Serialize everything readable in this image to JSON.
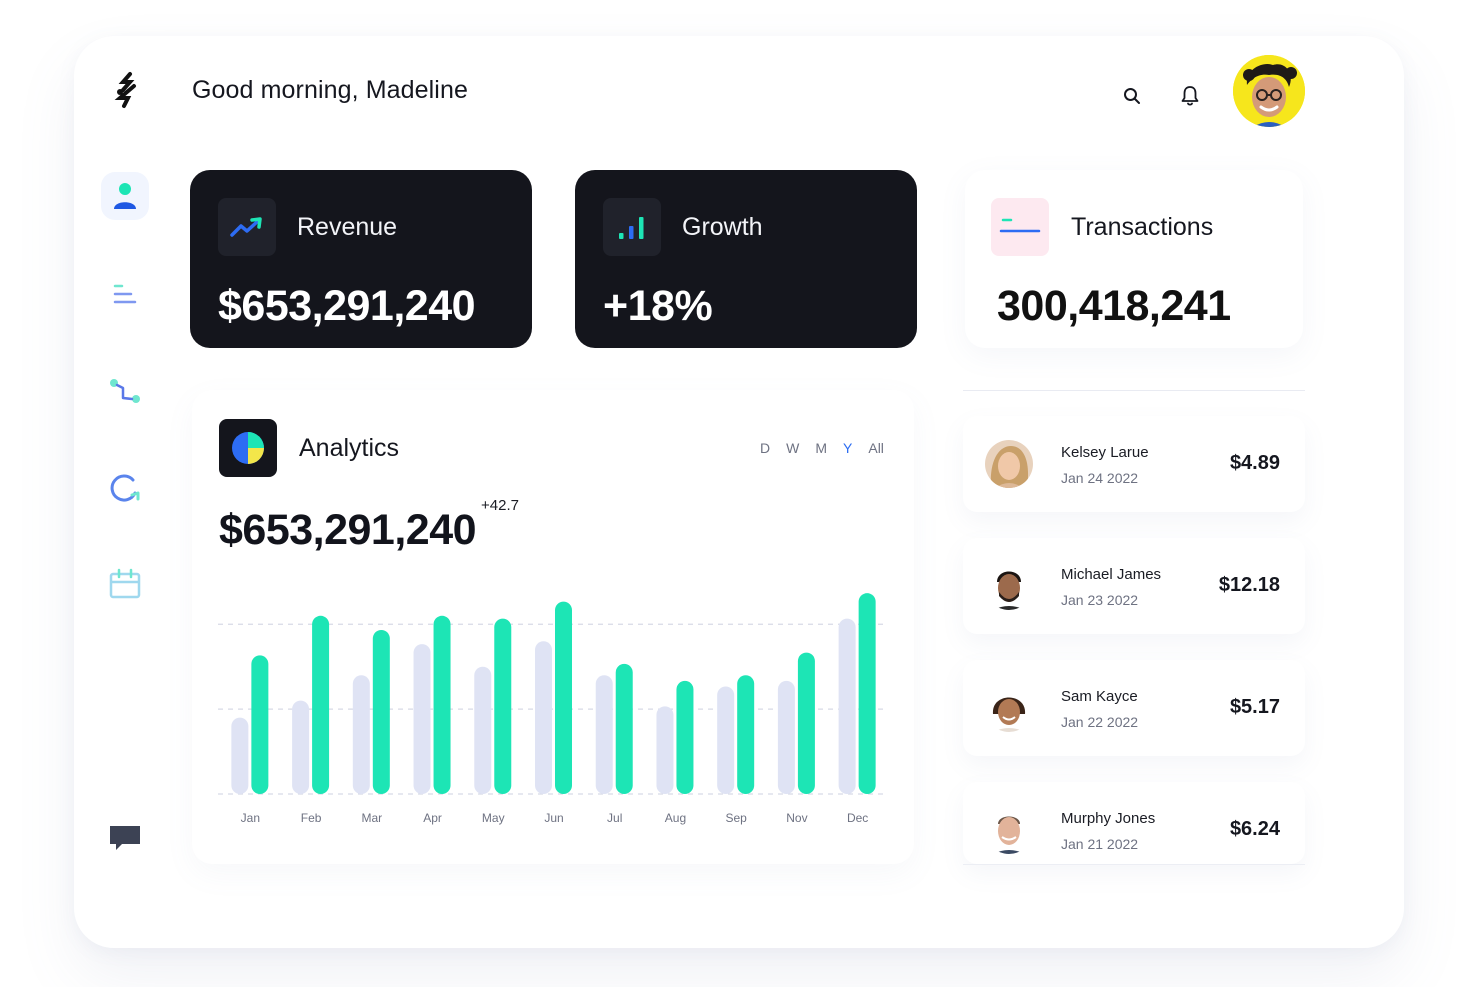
{
  "header": {
    "greeting": "Good morning, Madeline",
    "icons": [
      "search-icon",
      "bell-icon"
    ]
  },
  "sidebar": {
    "items": [
      {
        "name": "profile-icon",
        "active": true
      },
      {
        "name": "list-icon",
        "active": false
      },
      {
        "name": "workflow-icon",
        "active": false
      },
      {
        "name": "refresh-icon",
        "active": false
      },
      {
        "name": "calendar-icon",
        "active": false
      }
    ],
    "bottom_icon": "chat-icon"
  },
  "cards": {
    "revenue": {
      "label": "Revenue",
      "value": "$653,291,240",
      "icon": "trend-up-icon"
    },
    "growth": {
      "label": "Growth",
      "value": "+18%",
      "icon": "bar-chart-icon"
    },
    "transactions": {
      "label": "Transactions",
      "value": "300,418,241",
      "icon": "card-icon"
    }
  },
  "analytics": {
    "title": "Analytics",
    "icon": "pie-chart-icon",
    "periods": [
      "D",
      "W",
      "M",
      "Y",
      "All"
    ],
    "active_period": "Y",
    "value": "$653,291,240",
    "delta": "+42.7"
  },
  "transactions": [
    {
      "name": "Kelsey Larue",
      "date": "Jan 24 2022",
      "amount": "$4.89"
    },
    {
      "name": "Michael James",
      "date": "Jan 23 2022",
      "amount": "$12.18"
    },
    {
      "name": "Sam Kayce",
      "date": "Jan 22 2022",
      "amount": "$5.17"
    },
    {
      "name": "Murphy Jones",
      "date": "Jan 21 2022",
      "amount": "$6.24"
    }
  ],
  "colors": {
    "accent": "#1de5b5",
    "bar_secondary": "#dfe3f4",
    "dark_card": "#14151c",
    "active_link": "#2c6df2",
    "avatar_bg": "#f6e61c"
  },
  "chart_data": {
    "type": "bar",
    "categories": [
      "Jan",
      "Feb",
      "Mar",
      "Apr",
      "May",
      "Jun",
      "Jul",
      "Aug",
      "Sep",
      "Nov",
      "Dec"
    ],
    "series": [
      {
        "values": [
          0.27,
          0.33,
          0.42,
          0.53,
          0.45,
          0.54,
          0.42,
          0.31,
          0.38,
          0.4,
          0.62
        ]
      },
      {
        "values": [
          0.49,
          0.63,
          0.58,
          0.63,
          0.62,
          0.68,
          0.46,
          0.4,
          0.42,
          0.5,
          0.71
        ]
      }
    ],
    "ylim": [
      0,
      0.7
    ],
    "grid": true,
    "title": "",
    "xlabel": "",
    "ylabel": ""
  }
}
